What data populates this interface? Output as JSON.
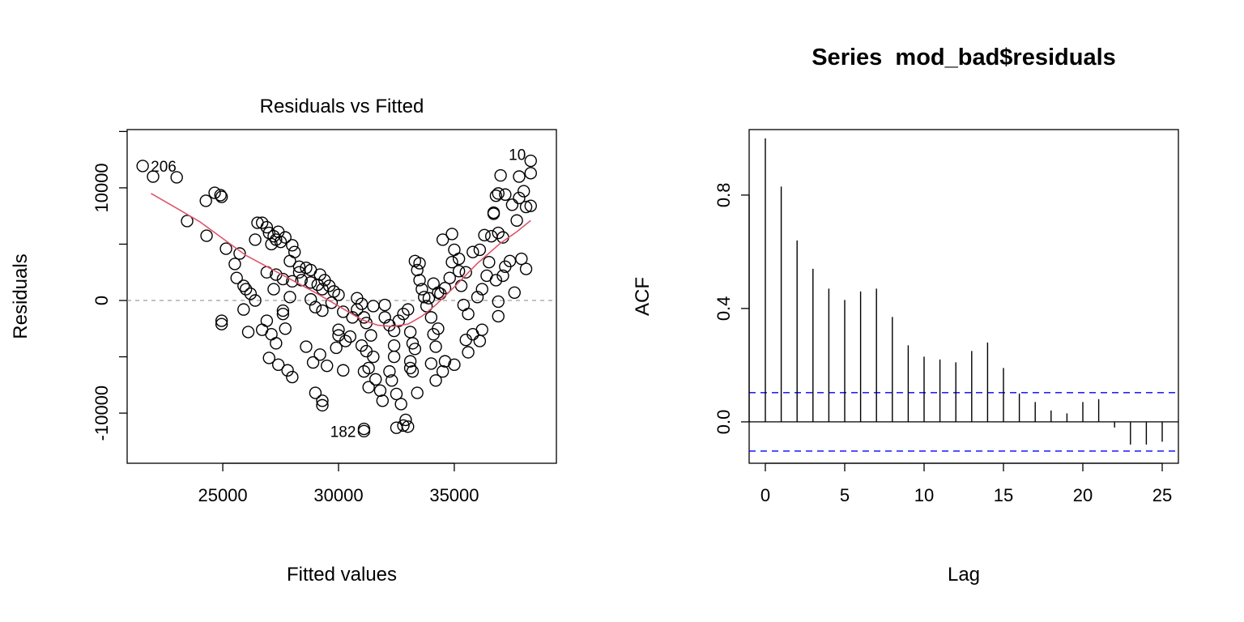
{
  "chart_data": [
    {
      "type": "scatter",
      "title": "Residuals vs Fitted",
      "xlabel": "Fitted values",
      "ylabel": "Residuals",
      "xlim": [
        20870,
        39410
      ],
      "ylim": [
        -14450,
        15170
      ],
      "xticks": [
        25000,
        30000,
        35000
      ],
      "xtick_labels": [
        "25000",
        "30000",
        "35000"
      ],
      "yticks": [
        -10000,
        -5000,
        0,
        5000,
        10000,
        15000
      ],
      "ytick_labels": [
        "-10000",
        "",
        "0",
        "",
        "10000",
        ""
      ],
      "reference_line": 0,
      "colors": {
        "points": "#000000",
        "smooth": "#DF536B",
        "reference": "#9E9E9E"
      },
      "annotations": [
        {
          "text": "206",
          "x": 21540,
          "y": 11940
        },
        {
          "text": "10",
          "x": 38300,
          "y": 12400
        },
        {
          "text": "182",
          "x": 31100,
          "y": -11600
        }
      ],
      "smooth": [
        [
          21900,
          9500
        ],
        [
          23000,
          8200
        ],
        [
          24000,
          7000
        ],
        [
          25000,
          5500
        ],
        [
          26000,
          4000
        ],
        [
          27000,
          2900
        ],
        [
          28000,
          1800
        ],
        [
          29000,
          700
        ],
        [
          30000,
          -500
        ],
        [
          31000,
          -1700
        ],
        [
          31700,
          -2200
        ],
        [
          32300,
          -2300
        ],
        [
          33000,
          -2100
        ],
        [
          33600,
          -1400
        ],
        [
          34200,
          -400
        ],
        [
          35000,
          1200
        ],
        [
          36000,
          3300
        ],
        [
          37000,
          5100
        ],
        [
          37700,
          6100
        ],
        [
          38300,
          7100
        ]
      ],
      "points": [
        [
          21540,
          11940
        ],
        [
          21990,
          11000
        ],
        [
          23010,
          10930
        ],
        [
          23460,
          7050
        ],
        [
          24270,
          8850
        ],
        [
          24650,
          9560
        ],
        [
          24900,
          9350
        ],
        [
          24950,
          9200
        ],
        [
          24300,
          5750
        ],
        [
          25140,
          4600
        ],
        [
          25520,
          3240
        ],
        [
          25730,
          4170
        ],
        [
          25600,
          2000
        ],
        [
          25900,
          1300
        ],
        [
          26000,
          1000
        ],
        [
          26200,
          600
        ],
        [
          26400,
          0
        ],
        [
          25900,
          -800
        ],
        [
          26100,
          -2800
        ],
        [
          24950,
          -1800
        ],
        [
          24950,
          -2100
        ],
        [
          26500,
          6900
        ],
        [
          26700,
          6900
        ],
        [
          26400,
          5400
        ],
        [
          26900,
          6500
        ],
        [
          27000,
          6000
        ],
        [
          27200,
          5700
        ],
        [
          27300,
          5400
        ],
        [
          27500,
          5200
        ],
        [
          27100,
          5000
        ],
        [
          27700,
          5600
        ],
        [
          27400,
          6100
        ],
        [
          28000,
          4900
        ],
        [
          28100,
          4300
        ],
        [
          27900,
          3500
        ],
        [
          28300,
          3000
        ],
        [
          28600,
          2900
        ],
        [
          28800,
          2700
        ],
        [
          29200,
          2300
        ],
        [
          29400,
          1800
        ],
        [
          29600,
          1300
        ],
        [
          29300,
          1000
        ],
        [
          29800,
          800
        ],
        [
          30000,
          500
        ],
        [
          26900,
          2500
        ],
        [
          27300,
          2300
        ],
        [
          27600,
          1900
        ],
        [
          28000,
          1700
        ],
        [
          28400,
          1800
        ],
        [
          28800,
          1600
        ],
        [
          27200,
          1000
        ],
        [
          27600,
          -900
        ],
        [
          27600,
          -1200
        ],
        [
          27900,
          300
        ],
        [
          28800,
          100
        ],
        [
          29000,
          -600
        ],
        [
          29300,
          -900
        ],
        [
          26700,
          -2600
        ],
        [
          26900,
          -1800
        ],
        [
          27100,
          -3000
        ],
        [
          27300,
          -3800
        ],
        [
          27700,
          -2500
        ],
        [
          27000,
          -5100
        ],
        [
          27400,
          -5700
        ],
        [
          27800,
          -6200
        ],
        [
          28000,
          -6800
        ],
        [
          28600,
          -4100
        ],
        [
          28900,
          -5500
        ],
        [
          29200,
          -4800
        ],
        [
          29500,
          -5800
        ],
        [
          29900,
          -4200
        ],
        [
          30200,
          -6200
        ],
        [
          29000,
          -8200
        ],
        [
          29300,
          -8900
        ],
        [
          29300,
          -9300
        ],
        [
          30000,
          -2600
        ],
        [
          30000,
          -3100
        ],
        [
          30300,
          -3600
        ],
        [
          30500,
          -3200
        ],
        [
          30200,
          -1000
        ],
        [
          30600,
          -1500
        ],
        [
          30800,
          -800
        ],
        [
          31000,
          -300
        ],
        [
          31100,
          -1500
        ],
        [
          31200,
          -2000
        ],
        [
          31000,
          -4000
        ],
        [
          31200,
          -4500
        ],
        [
          31400,
          -3100
        ],
        [
          31500,
          -5000
        ],
        [
          31300,
          -6000
        ],
        [
          31100,
          -6300
        ],
        [
          31600,
          -7000
        ],
        [
          31300,
          -7700
        ],
        [
          31800,
          -8000
        ],
        [
          31900,
          -8900
        ],
        [
          32200,
          -6300
        ],
        [
          32300,
          -7100
        ],
        [
          32500,
          -8300
        ],
        [
          32700,
          -9200
        ],
        [
          31100,
          -11400
        ],
        [
          31100,
          -11600
        ],
        [
          32500,
          -11300
        ],
        [
          32800,
          -11100
        ],
        [
          32900,
          -10600
        ],
        [
          33000,
          -11200
        ],
        [
          32000,
          -1500
        ],
        [
          32200,
          -2200
        ],
        [
          32400,
          -2700
        ],
        [
          32600,
          -1800
        ],
        [
          32800,
          -1200
        ],
        [
          33000,
          -800
        ],
        [
          33100,
          -2800
        ],
        [
          33200,
          -3800
        ],
        [
          32400,
          -4000
        ],
        [
          32400,
          -5000
        ],
        [
          33100,
          -5400
        ],
        [
          33100,
          -6000
        ],
        [
          33200,
          -6300
        ],
        [
          33300,
          -4300
        ],
        [
          33400,
          -8200
        ],
        [
          33300,
          3500
        ],
        [
          33500,
          3300
        ],
        [
          33400,
          2700
        ],
        [
          33500,
          1800
        ],
        [
          33600,
          1000
        ],
        [
          33700,
          300
        ],
        [
          33800,
          -500
        ],
        [
          34000,
          -1500
        ],
        [
          34100,
          -3000
        ],
        [
          34200,
          -4100
        ],
        [
          34000,
          -5600
        ],
        [
          34200,
          -7100
        ],
        [
          34500,
          -6300
        ],
        [
          34600,
          -5400
        ],
        [
          34300,
          -2500
        ],
        [
          34400,
          600
        ],
        [
          34600,
          1100
        ],
        [
          34800,
          2000
        ],
        [
          34900,
          3400
        ],
        [
          35000,
          4500
        ],
        [
          34500,
          5400
        ],
        [
          34900,
          5900
        ],
        [
          35200,
          2600
        ],
        [
          35300,
          1300
        ],
        [
          35400,
          -400
        ],
        [
          35600,
          -1200
        ],
        [
          35500,
          -3500
        ],
        [
          35600,
          -4600
        ],
        [
          35000,
          -5700
        ],
        [
          35800,
          -3000
        ],
        [
          36100,
          -3600
        ],
        [
          36200,
          -2600
        ],
        [
          36000,
          300
        ],
        [
          36200,
          1000
        ],
        [
          36400,
          2200
        ],
        [
          36500,
          3400
        ],
        [
          35800,
          4300
        ],
        [
          36100,
          4500
        ],
        [
          36600,
          5700
        ],
        [
          36300,
          5800
        ],
        [
          36800,
          1800
        ],
        [
          36900,
          -1400
        ],
        [
          36900,
          -100
        ],
        [
          37100,
          2200
        ],
        [
          37200,
          3000
        ],
        [
          37400,
          3500
        ],
        [
          37600,
          700
        ],
        [
          37900,
          3700
        ],
        [
          38100,
          2800
        ],
        [
          36700,
          7800
        ],
        [
          36800,
          9300
        ],
        [
          36900,
          9500
        ],
        [
          36700,
          7700
        ],
        [
          37000,
          11100
        ],
        [
          37200,
          9400
        ],
        [
          37500,
          8500
        ],
        [
          37700,
          7100
        ],
        [
          37800,
          11000
        ],
        [
          37800,
          9100
        ],
        [
          38000,
          9700
        ],
        [
          38100,
          8300
        ],
        [
          38300,
          8400
        ],
        [
          38300,
          11300
        ],
        [
          38300,
          12400
        ],
        [
          36900,
          6000
        ],
        [
          37100,
          5600
        ],
        [
          35200,
          3700
        ],
        [
          35500,
          2500
        ],
        [
          34100,
          1500
        ],
        [
          34300,
          700
        ],
        [
          33900,
          200
        ],
        [
          30800,
          200
        ],
        [
          31500,
          -500
        ],
        [
          32000,
          -400
        ],
        [
          29700,
          -200
        ],
        [
          29100,
          1400
        ],
        [
          28300,
          2500
        ]
      ]
    },
    {
      "type": "bar",
      "subtype": "acf",
      "title": "Series  mod_bad$residuals",
      "xlabel": "Lag",
      "ylabel": "ACF",
      "xlim": [
        -1.02,
        26.02
      ],
      "ylim": [
        -0.146,
        1.031
      ],
      "xticks": [
        0,
        5,
        10,
        15,
        20,
        25
      ],
      "xtick_labels": [
        "0",
        "5",
        "10",
        "15",
        "20",
        "25"
      ],
      "yticks": [
        0.0,
        0.4,
        0.8
      ],
      "ytick_labels": [
        "0.0",
        "0.4",
        "0.8"
      ],
      "confidence_bound": 0.103,
      "colors": {
        "bars": "#000000",
        "ci": "#0000FF"
      },
      "lags": [
        0,
        1,
        2,
        3,
        4,
        5,
        6,
        7,
        8,
        9,
        10,
        11,
        12,
        13,
        14,
        15,
        16,
        17,
        18,
        19,
        20,
        21,
        22,
        23,
        24,
        25
      ],
      "values": [
        1.0,
        0.83,
        0.64,
        0.54,
        0.47,
        0.43,
        0.46,
        0.47,
        0.37,
        0.27,
        0.23,
        0.22,
        0.21,
        0.25,
        0.28,
        0.19,
        0.1,
        0.07,
        0.04,
        0.03,
        0.07,
        0.08,
        -0.02,
        -0.08,
        -0.08,
        -0.07
      ]
    }
  ]
}
